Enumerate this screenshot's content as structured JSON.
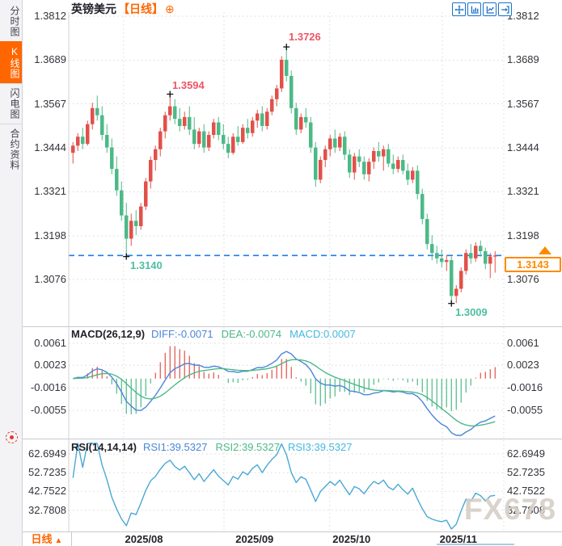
{
  "app": {
    "watermark": "FX678"
  },
  "colors": {
    "up": "#e2504a",
    "down": "#4db987",
    "dash_line": "#1f7ce8",
    "badge_orange": "#ff8a00",
    "accent_orange": "#ff6600",
    "diff_line": "#4a86d8",
    "dea_line": "#4db987",
    "rsi_line": "#49a8d4",
    "annotation_high": "#ed5565",
    "annotation_low": "#4dbfa0",
    "grid": "#d9d9df",
    "separator": "#c7cad0"
  },
  "sidebar": {
    "items": [
      {
        "label": "分时图",
        "active": false
      },
      {
        "label": "K线图",
        "active": true
      },
      {
        "label": "闪电图",
        "active": false
      },
      {
        "label": "合约资料",
        "active": false
      }
    ],
    "target_icon": "red-target-icon"
  },
  "header": {
    "title": "英镑美元",
    "timeframe_tag": "【日线】",
    "add_icon": "⊕",
    "toolbar_icons": [
      "pan-crosshair-icon",
      "y-axis-scale-icon",
      "x-axis-scale-icon",
      "exit-chart-icon"
    ]
  },
  "price_panel": {
    "y_ticks": [
      "1.3812",
      "1.3689",
      "1.3567",
      "1.3444",
      "1.3321",
      "1.3198",
      "1.3076"
    ],
    "last_price": "1.3143",
    "annotations": {
      "high_major": "1.3726",
      "high_minor": "1.3594",
      "low_minor": "1.3140",
      "low_major": "1.3009"
    }
  },
  "macd_panel": {
    "title": "MACD(26,12,9)",
    "diff": "DIFF:-0.0071",
    "dea": "DEA:-0.0074",
    "macd": "MACD:0.0007",
    "y_ticks": [
      "0.0061",
      "0.0023",
      "-0.0016",
      "-0.0055"
    ]
  },
  "rsi_panel": {
    "title": "RSI(14,14,14)",
    "rsi1": "RSI1:39.5327",
    "rsi2": "RSI2:39.5327",
    "rsi3": "RSI3:39.5327",
    "y_ticks": [
      "62.6949",
      "52.7235",
      "42.7522",
      "32.7808"
    ]
  },
  "bottom_bar": {
    "timeframe": "日线",
    "arrow": "▲"
  },
  "chart_data": {
    "type": "candlestick",
    "symbol": "英镑美元",
    "interval": "日线",
    "title": "英镑美元【日线】",
    "ylim": [
      1.2948,
      1.3823
    ],
    "y_ticks": [
      1.3812,
      1.3689,
      1.3567,
      1.3444,
      1.3321,
      1.3198,
      1.3076
    ],
    "last_price": 1.3143,
    "month_gridlines": [
      {
        "label": "2025/08",
        "grid_index": 10.8,
        "label_index": 15.0
      },
      {
        "label": "2025/09",
        "grid_index": 31.5,
        "label_index": 37.8
      },
      {
        "label": "2025/10",
        "grid_index": 53.3,
        "label_index": 57.8
      },
      {
        "label": "2025/11",
        "grid_index": 76.5,
        "label_index": 79.8
      }
    ],
    "annotations": [
      {
        "text": "1.3726",
        "index": 44,
        "price": 1.3726,
        "kind": "high"
      },
      {
        "text": "1.3594",
        "index": 20,
        "price": 1.3594,
        "kind": "high"
      },
      {
        "text": "1.3140",
        "index": 11,
        "price": 1.314,
        "kind": "low"
      },
      {
        "text": "1.3009",
        "index": 78,
        "price": 1.3009,
        "kind": "low"
      }
    ],
    "indicators": [
      {
        "name": "MACD",
        "params": [
          26,
          12,
          9
        ],
        "shown_values": {
          "DIFF": -0.0071,
          "DEA": -0.0074,
          "MACD": 0.0007
        },
        "axis_ticks": [
          0.0061,
          0.0023,
          -0.0016,
          -0.0055
        ]
      },
      {
        "name": "RSI",
        "params": [
          14,
          14,
          14
        ],
        "shown_values": {
          "RSI1": 39.5327,
          "RSI2": 39.5327,
          "RSI3": 39.5327
        },
        "axis_ticks": [
          62.6949,
          52.7235,
          42.7522,
          32.7808
        ]
      }
    ],
    "ohlc": [
      [
        1.343,
        1.346,
        1.34,
        1.345
      ],
      [
        1.345,
        1.3485,
        1.3435,
        1.3475
      ],
      [
        1.3475,
        1.35,
        1.344,
        1.3455
      ],
      [
        1.3455,
        1.352,
        1.345,
        1.351
      ],
      [
        1.351,
        1.357,
        1.3495,
        1.3555
      ],
      [
        1.3555,
        1.359,
        1.352,
        1.3535
      ],
      [
        1.3535,
        1.356,
        1.3465,
        1.348
      ],
      [
        1.348,
        1.351,
        1.343,
        1.3445
      ],
      [
        1.3445,
        1.347,
        1.337,
        1.3385
      ],
      [
        1.3385,
        1.342,
        1.331,
        1.3325
      ],
      [
        1.3325,
        1.335,
        1.324,
        1.3255
      ],
      [
        1.3255,
        1.329,
        1.314,
        1.319
      ],
      [
        1.319,
        1.326,
        1.317,
        1.324
      ],
      [
        1.324,
        1.327,
        1.32,
        1.3225
      ],
      [
        1.3225,
        1.329,
        1.3215,
        1.328
      ],
      [
        1.328,
        1.336,
        1.327,
        1.335
      ],
      [
        1.335,
        1.342,
        1.333,
        1.341
      ],
      [
        1.341,
        1.345,
        1.338,
        1.344
      ],
      [
        1.344,
        1.35,
        1.342,
        1.349
      ],
      [
        1.349,
        1.3545,
        1.347,
        1.3535
      ],
      [
        1.3535,
        1.3594,
        1.352,
        1.356
      ],
      [
        1.356,
        1.358,
        1.351,
        1.3525
      ],
      [
        1.3525,
        1.3555,
        1.349,
        1.3505
      ],
      [
        1.3505,
        1.3545,
        1.3495,
        1.353
      ],
      [
        1.353,
        1.356,
        1.348,
        1.3495
      ],
      [
        1.3495,
        1.353,
        1.344,
        1.3455
      ],
      [
        1.3455,
        1.35,
        1.3445,
        1.349
      ],
      [
        1.349,
        1.351,
        1.343,
        1.3445
      ],
      [
        1.3445,
        1.349,
        1.3435,
        1.348
      ],
      [
        1.348,
        1.3525,
        1.347,
        1.3515
      ],
      [
        1.3515,
        1.353,
        1.3465,
        1.348
      ],
      [
        1.348,
        1.351,
        1.344,
        1.3455
      ],
      [
        1.3455,
        1.3475,
        1.3415,
        1.343
      ],
      [
        1.343,
        1.3485,
        1.3425,
        1.3475
      ],
      [
        1.3475,
        1.3505,
        1.345,
        1.346
      ],
      [
        1.346,
        1.351,
        1.3455,
        1.35
      ],
      [
        1.35,
        1.3525,
        1.347,
        1.3485
      ],
      [
        1.3485,
        1.353,
        1.3475,
        1.352
      ],
      [
        1.352,
        1.355,
        1.35,
        1.354
      ],
      [
        1.354,
        1.356,
        1.349,
        1.3505
      ],
      [
        1.3505,
        1.3555,
        1.3495,
        1.3545
      ],
      [
        1.3545,
        1.359,
        1.3535,
        1.358
      ],
      [
        1.358,
        1.362,
        1.356,
        1.361
      ],
      [
        1.361,
        1.37,
        1.36,
        1.369
      ],
      [
        1.369,
        1.3726,
        1.363,
        1.3645
      ],
      [
        1.3645,
        1.366,
        1.354,
        1.3555
      ],
      [
        1.3555,
        1.357,
        1.348,
        1.3495
      ],
      [
        1.3495,
        1.354,
        1.3485,
        1.353
      ],
      [
        1.353,
        1.3555,
        1.35,
        1.3515
      ],
      [
        1.3515,
        1.353,
        1.343,
        1.3445
      ],
      [
        1.3445,
        1.346,
        1.3335,
        1.3355
      ],
      [
        1.3355,
        1.342,
        1.3345,
        1.341
      ],
      [
        1.341,
        1.345,
        1.339,
        1.344
      ],
      [
        1.344,
        1.348,
        1.342,
        1.347
      ],
      [
        1.347,
        1.3495,
        1.343,
        1.3445
      ],
      [
        1.3445,
        1.3485,
        1.3435,
        1.3475
      ],
      [
        1.3475,
        1.349,
        1.341,
        1.3425
      ],
      [
        1.3425,
        1.344,
        1.336,
        1.3375
      ],
      [
        1.3375,
        1.343,
        1.3355,
        1.342
      ],
      [
        1.342,
        1.344,
        1.339,
        1.3405
      ],
      [
        1.3405,
        1.342,
        1.3355,
        1.337
      ],
      [
        1.337,
        1.3415,
        1.335,
        1.3405
      ],
      [
        1.3405,
        1.3445,
        1.3385,
        1.3435
      ],
      [
        1.3435,
        1.346,
        1.3405,
        1.342
      ],
      [
        1.342,
        1.345,
        1.338,
        1.344
      ],
      [
        1.344,
        1.3455,
        1.339,
        1.34
      ],
      [
        1.34,
        1.3425,
        1.337,
        1.3385
      ],
      [
        1.3385,
        1.342,
        1.3375,
        1.341
      ],
      [
        1.341,
        1.3425,
        1.337,
        1.338
      ],
      [
        1.338,
        1.34,
        1.334,
        1.3355
      ],
      [
        1.3355,
        1.339,
        1.3345,
        1.338
      ],
      [
        1.338,
        1.3395,
        1.33,
        1.3315
      ],
      [
        1.3315,
        1.333,
        1.323,
        1.3245
      ],
      [
        1.3245,
        1.326,
        1.316,
        1.3175
      ],
      [
        1.3175,
        1.32,
        1.313,
        1.315
      ],
      [
        1.315,
        1.317,
        1.312,
        1.3135
      ],
      [
        1.3135,
        1.316,
        1.311,
        1.3125
      ],
      [
        1.3125,
        1.3145,
        1.31,
        1.313
      ],
      [
        1.313,
        1.314,
        1.3009,
        1.303
      ],
      [
        1.303,
        1.306,
        1.301,
        1.305
      ],
      [
        1.305,
        1.311,
        1.304,
        1.31
      ],
      [
        1.31,
        1.316,
        1.309,
        1.315
      ],
      [
        1.315,
        1.3175,
        1.312,
        1.3135
      ],
      [
        1.3135,
        1.318,
        1.3125,
        1.317
      ],
      [
        1.317,
        1.3185,
        1.314,
        1.3155
      ],
      [
        1.3155,
        1.3165,
        1.3105,
        1.312
      ],
      [
        1.312,
        1.315,
        1.308,
        1.314
      ],
      [
        1.314,
        1.3155,
        1.3095,
        1.3143
      ]
    ]
  }
}
